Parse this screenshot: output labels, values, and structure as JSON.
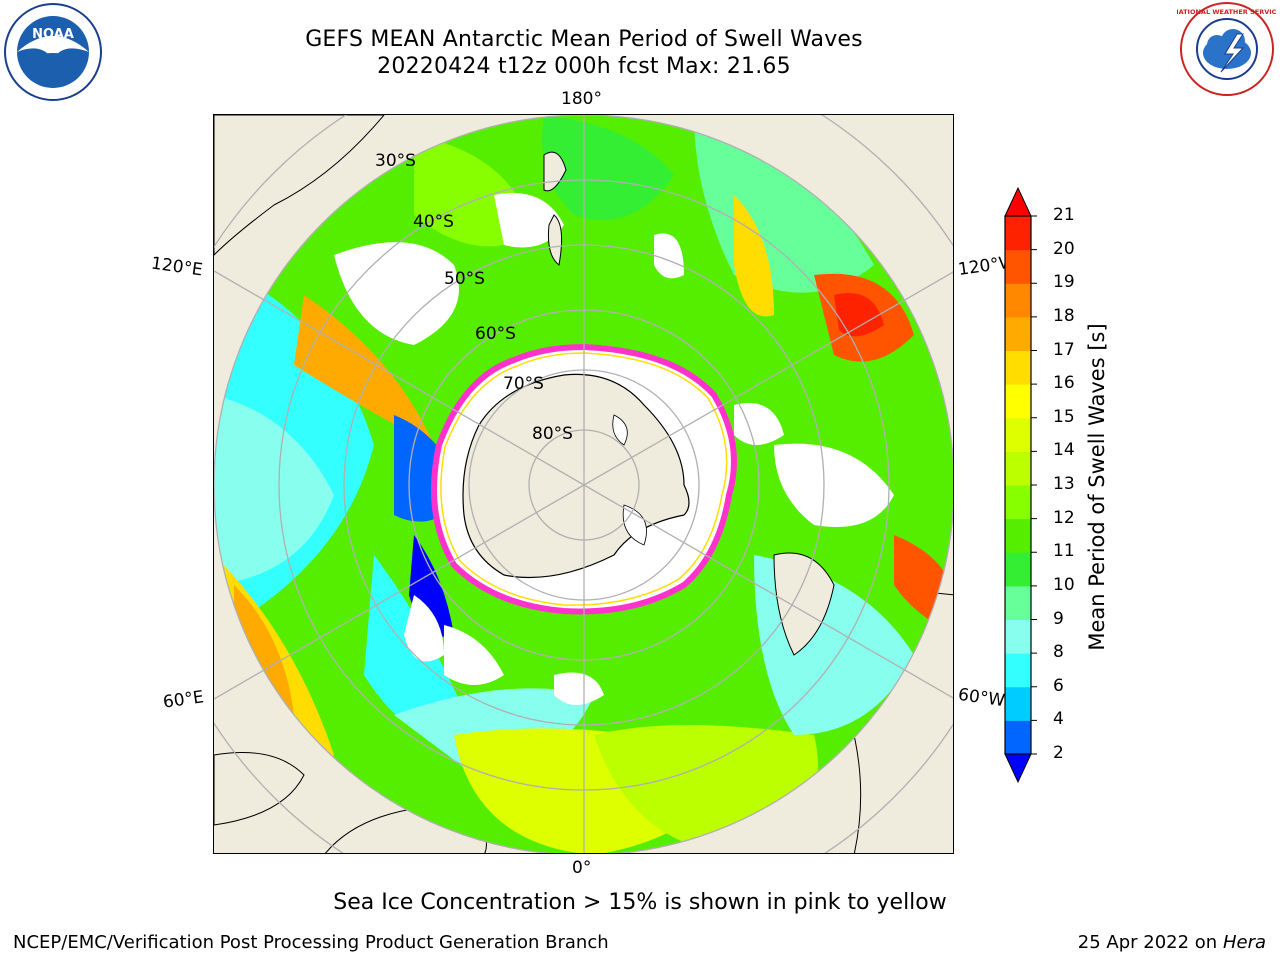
{
  "header": {
    "title_line1": "GEFS MEAN Antarctic Mean Period of Swell Waves",
    "title_line2": "20220424 t12z 000h fcst   Max: 21.65"
  },
  "map": {
    "longitude_labels": {
      "top": "180°",
      "bottom": "0°",
      "left_upper": "120°E",
      "left_lower": "60°E",
      "right_upper": "120°W",
      "right_lower": "60°W"
    },
    "latitude_labels": [
      "30°S",
      "40°S",
      "50°S",
      "60°S",
      "70°S",
      "80°S"
    ],
    "colors": {
      "land": "#efecdd",
      "ocean_ice_free_gap": "#ffffff",
      "gridline": "#b0b0b0",
      "sea_ice_edge": "#ff33cc"
    }
  },
  "colorbar": {
    "label": "Mean Period of Swell Waves [s]",
    "ticks": [
      "2",
      "4",
      "6",
      "8",
      "9",
      "10",
      "11",
      "12",
      "13",
      "14",
      "15",
      "16",
      "17",
      "18",
      "19",
      "20",
      "21"
    ],
    "colors": [
      "#0000ff",
      "#0066ff",
      "#00ccff",
      "#33ffff",
      "#88ffee",
      "#66ff99",
      "#33ee33",
      "#55ee00",
      "#88ff00",
      "#bbff00",
      "#ddff00",
      "#ffff00",
      "#ffdd00",
      "#ffaa00",
      "#ff8800",
      "#ff5500",
      "#ff2200"
    ],
    "under_color": "#0000ff",
    "over_color": "#ff0000"
  },
  "note": "Sea Ice Concentration > 15% is shown in pink to yellow",
  "footer": {
    "left": "NCEP/EMC/Verification Post Processing Product Generation Branch",
    "right_date": "25 Apr 2022 on ",
    "right_host": "Hera"
  },
  "logos": {
    "noaa_text": "NOAA",
    "nws_text": "NATIONAL WEATHER SERVICE"
  }
}
